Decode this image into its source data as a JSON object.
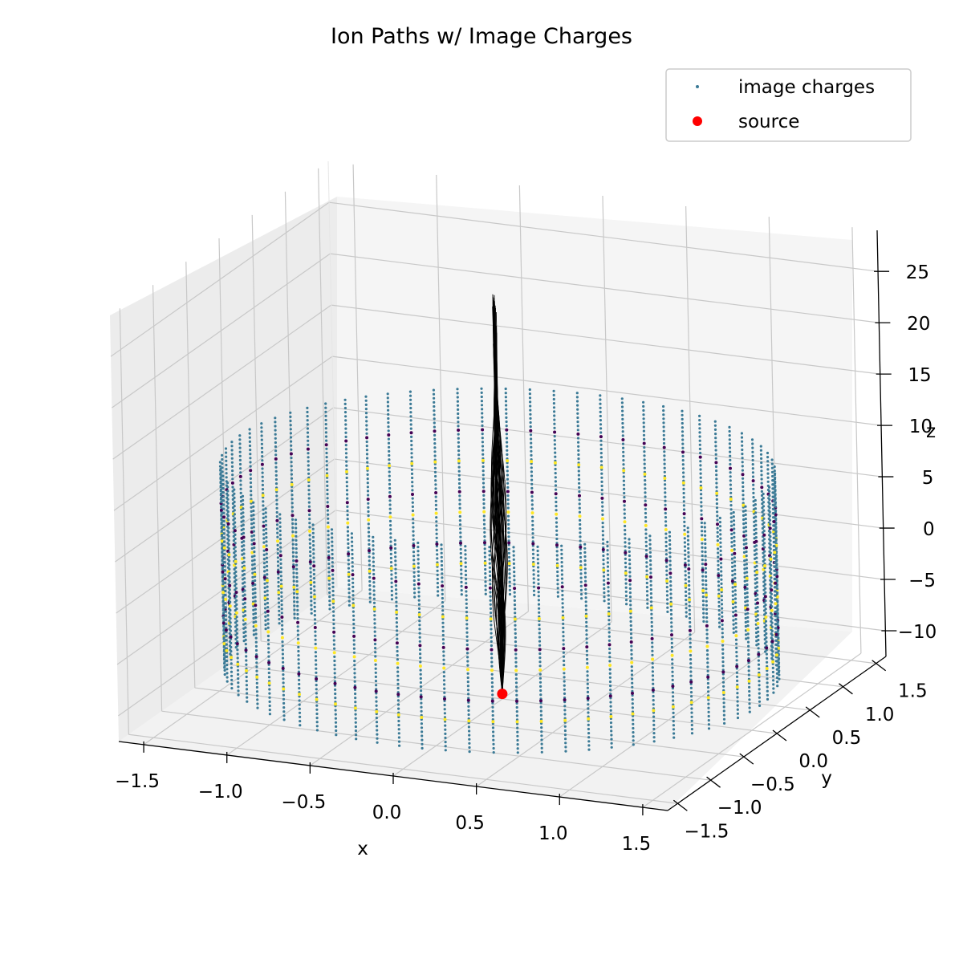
{
  "chart_data": {
    "type": "scatter",
    "title": "Ion Paths w/ Image Charges",
    "xlabel": "x",
    "ylabel": "y",
    "zlabel": "z",
    "xlim": [
      -1.65,
      1.65
    ],
    "ylim": [
      -1.65,
      1.65
    ],
    "zlim": [
      -12.5,
      29
    ],
    "x_ticks": [
      -1.5,
      -1.0,
      -0.5,
      0.0,
      0.5,
      1.0,
      1.5
    ],
    "x_tick_labels": [
      "−1.5",
      "−1.0",
      "−0.5",
      "0.0",
      "0.5",
      "1.0",
      "1.5"
    ],
    "y_ticks": [
      1.5,
      1.0,
      0.5,
      0.0,
      -0.5,
      -1.0,
      -1.5
    ],
    "y_tick_labels": [
      "1.5",
      "1.0",
      "0.5",
      "0.0",
      "−0.5",
      "−1.0",
      "−1.5"
    ],
    "z_ticks": [
      25,
      20,
      15,
      10,
      5,
      0,
      -5,
      -10
    ],
    "z_tick_labels": [
      "25",
      "20",
      "15",
      "10",
      "5",
      "0",
      "−5",
      "−10"
    ],
    "grid": true,
    "legend_position": "top-right",
    "series": [
      {
        "name": "image charges",
        "marker": "small-dot",
        "color": "#3b7a96",
        "ring_radius": 1.55,
        "n_columns": 72,
        "z_range": [
          -10,
          10
        ],
        "highlight_colors": [
          "#fde725",
          "#440154"
        ]
      },
      {
        "name": "source",
        "marker": "dot",
        "color": "#ff0000",
        "points": [
          {
            "x": 0.0,
            "y": 0.0,
            "z": -12
          }
        ]
      }
    ],
    "ion_paths": {
      "color": "#000000",
      "count": 40,
      "start": {
        "x": 0.0,
        "y": 0.0,
        "z": -12
      },
      "end_z": [
        22,
        27
      ]
    }
  }
}
